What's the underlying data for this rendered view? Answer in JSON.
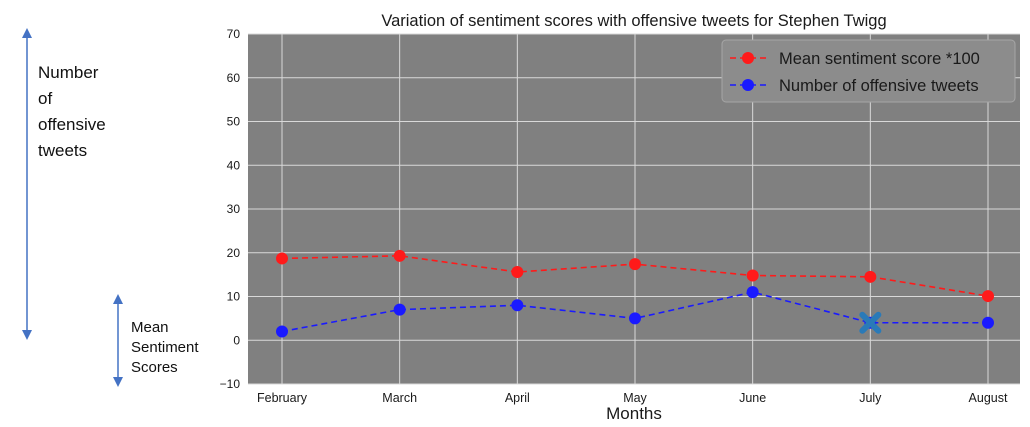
{
  "annotations": {
    "left": [
      "Number",
      "of",
      "offensive",
      "tweets"
    ],
    "right": [
      "Mean",
      "Sentiment",
      "Scores"
    ]
  },
  "colors": {
    "plot_bg": "#808080",
    "grid": "#d9d9d9",
    "series_sentiment": "#ff1a1a",
    "series_tweets": "#1a1aff",
    "marker_x": "#2a7ab8",
    "arrow": "#4472c4"
  },
  "chart_data": {
    "type": "line",
    "title": "Variation of sentiment scores with offensive tweets for Stephen Twigg",
    "xlabel": "Months",
    "ylabel": "",
    "categories": [
      "February",
      "March",
      "April",
      "May",
      "June",
      "July",
      "August"
    ],
    "ylim": [
      -10,
      70
    ],
    "yticks": [
      -10,
      0,
      10,
      20,
      30,
      40,
      50,
      60,
      70
    ],
    "grid": true,
    "legend_position": "top-right",
    "series": [
      {
        "name": "Mean sentiment score *100",
        "values": [
          18.7,
          19.3,
          15.6,
          17.4,
          14.8,
          14.5,
          10.1
        ]
      },
      {
        "name": "Number of offensive tweets",
        "values": [
          2,
          7,
          8,
          5,
          11,
          4,
          4
        ]
      }
    ],
    "highlight": {
      "category": "July",
      "value": 4,
      "marker": "x-icon"
    }
  }
}
